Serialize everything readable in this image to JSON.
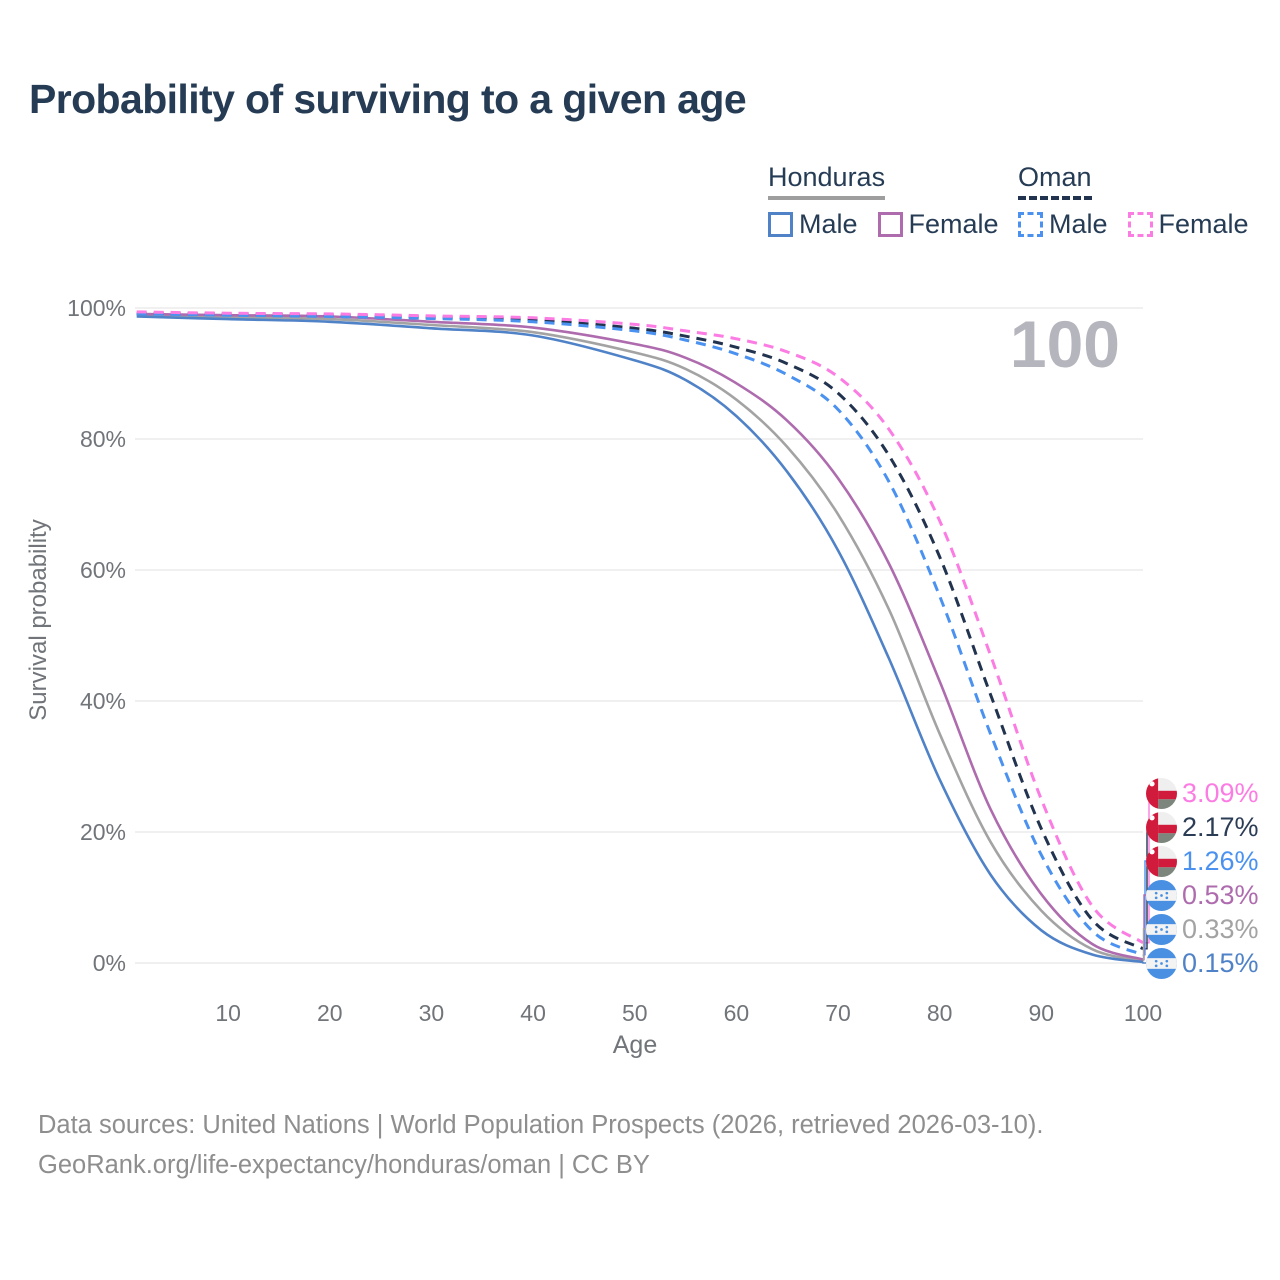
{
  "title": "Probability of surviving to a given age",
  "watermark_age": "100",
  "legend": {
    "groups": [
      {
        "label": "Honduras",
        "line_style": "solid",
        "underline_color": "#9e9e9e",
        "items": [
          {
            "label": "Male",
            "color": "#5082c8"
          },
          {
            "label": "Female",
            "color": "#ae6cae"
          }
        ]
      },
      {
        "label": "Oman",
        "line_style": "dashed",
        "underline_color": "#22334f",
        "items": [
          {
            "label": "Male",
            "color": "#4b92f0"
          },
          {
            "label": "Female",
            "color": "#fb7ce2"
          }
        ]
      }
    ]
  },
  "chart_data": {
    "type": "line",
    "title": "Probability of surviving to a given age",
    "xlabel": "Age",
    "ylabel": "Survival probability",
    "xlim": [
      0,
      100
    ],
    "ylim": [
      0,
      100
    ],
    "grid": "horizontal",
    "legend_position": "top-right",
    "xticks": [
      10,
      20,
      30,
      40,
      50,
      60,
      70,
      80,
      90,
      100
    ],
    "yticks": [
      {
        "value": 0,
        "label": "0%"
      },
      {
        "value": 20,
        "label": "20%"
      },
      {
        "value": 40,
        "label": "40%"
      },
      {
        "value": 60,
        "label": "60%"
      },
      {
        "value": 80,
        "label": "80%"
      },
      {
        "value": 100,
        "label": "100%"
      }
    ],
    "x": [
      1,
      10,
      20,
      30,
      40,
      50,
      55,
      60,
      65,
      70,
      75,
      80,
      85,
      90,
      95,
      100
    ],
    "series": [
      {
        "name": "Honduras",
        "sex": "Both",
        "color": "#a3a3a3",
        "dashed": false,
        "values": [
          98.9,
          98.6,
          98.3,
          97.4,
          96.3,
          93.2,
          90.7,
          86.0,
          78.8,
          68.5,
          54.0,
          35.0,
          18.5,
          8.0,
          2.1,
          0.33
        ]
      },
      {
        "name": "Honduras Male",
        "sex": "Male",
        "color": "#5082c8",
        "dashed": false,
        "values": [
          98.7,
          98.3,
          97.9,
          96.9,
          95.8,
          92.0,
          89.0,
          83.5,
          75.0,
          63.0,
          46.5,
          28.0,
          13.5,
          5.0,
          1.3,
          0.15
        ]
      },
      {
        "name": "Honduras Female",
        "sex": "Female",
        "color": "#ae6cae",
        "dashed": false,
        "values": [
          99.1,
          98.9,
          98.7,
          97.9,
          97.0,
          94.5,
          92.4,
          88.5,
          82.8,
          74.0,
          61.0,
          43.0,
          23.5,
          10.5,
          2.9,
          0.53
        ]
      },
      {
        "name": "Oman",
        "sex": "Both",
        "color": "#22334f",
        "dashed": true,
        "values": [
          99.2,
          99.1,
          98.9,
          98.6,
          98.2,
          96.9,
          95.7,
          94.0,
          91.5,
          87.0,
          77.5,
          62.0,
          41.0,
          20.5,
          6.6,
          2.17
        ]
      },
      {
        "name": "Oman Male",
        "sex": "Male",
        "color": "#4b92f0",
        "dashed": true,
        "values": [
          99.1,
          98.9,
          98.7,
          98.4,
          97.9,
          96.5,
          95.1,
          93.0,
          89.8,
          84.5,
          73.5,
          56.0,
          35.0,
          16.5,
          4.9,
          1.26
        ]
      },
      {
        "name": "Oman Female",
        "sex": "Female",
        "color": "#fb7ce2",
        "dashed": true,
        "values": [
          99.4,
          99.2,
          99.1,
          98.8,
          98.5,
          97.5,
          96.5,
          95.3,
          93.3,
          89.5,
          81.5,
          67.5,
          47.0,
          25.0,
          8.7,
          3.09
        ]
      }
    ]
  },
  "end_labels": [
    {
      "text": "3.09%",
      "series": "Oman Female",
      "country": "Oman",
      "color": "#fb7ce2"
    },
    {
      "text": "2.17%",
      "series": "Oman",
      "country": "Oman",
      "color": "#2b3c55"
    },
    {
      "text": "1.26%",
      "series": "Oman Male",
      "country": "Oman",
      "color": "#4b92f0"
    },
    {
      "text": "0.53%",
      "series": "Honduras Female",
      "country": "Honduras",
      "color": "#ae6cae"
    },
    {
      "text": "0.33%",
      "series": "Honduras",
      "country": "Honduras",
      "color": "#a3a3a3"
    },
    {
      "text": "0.15%",
      "series": "Honduras Male",
      "country": "Honduras",
      "color": "#5082c8"
    }
  ],
  "footer": {
    "line1": "Data sources: United Nations | World Population Prospects (2026, retrieved 2026-03-10).",
    "line2": "GeoRank.org/life-expectancy/honduras/oman | CC BY"
  }
}
